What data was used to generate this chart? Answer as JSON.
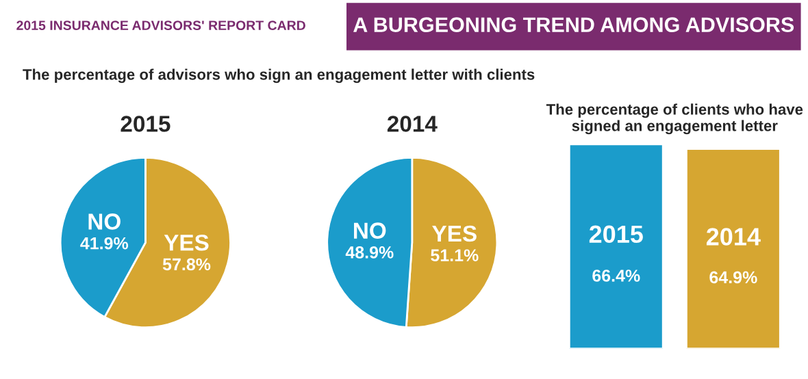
{
  "chart_data": [
    {
      "type": "pie",
      "title": "2015",
      "subtitle": "The percentage of advisors who sign an engagement letter with clients",
      "annotations": [
        "2015 INSURANCE ADVISORS' REPORT CARD",
        "A BURGEONING TREND AMONG ADVISORS"
      ],
      "categories": [
        "YES",
        "NO"
      ],
      "values": [
        57.8,
        41.9
      ],
      "colors": [
        "#d6a631",
        "#1b9ccb"
      ],
      "value_labels": [
        "57.8%",
        "41.9%"
      ]
    },
    {
      "type": "pie",
      "title": "2014",
      "categories": [
        "YES",
        "NO"
      ],
      "values": [
        51.1,
        48.9
      ],
      "colors": [
        "#d6a631",
        "#1b9ccb"
      ],
      "value_labels": [
        "51.1%",
        "48.9%"
      ]
    },
    {
      "type": "bar",
      "title": "The percentage of clients who have signed an engagement letter",
      "categories": [
        "2015",
        "2014"
      ],
      "values": [
        66.4,
        64.9
      ],
      "colors": [
        "#1b9ccb",
        "#d6a631"
      ],
      "value_labels": [
        "66.4%",
        "64.9%"
      ]
    }
  ]
}
